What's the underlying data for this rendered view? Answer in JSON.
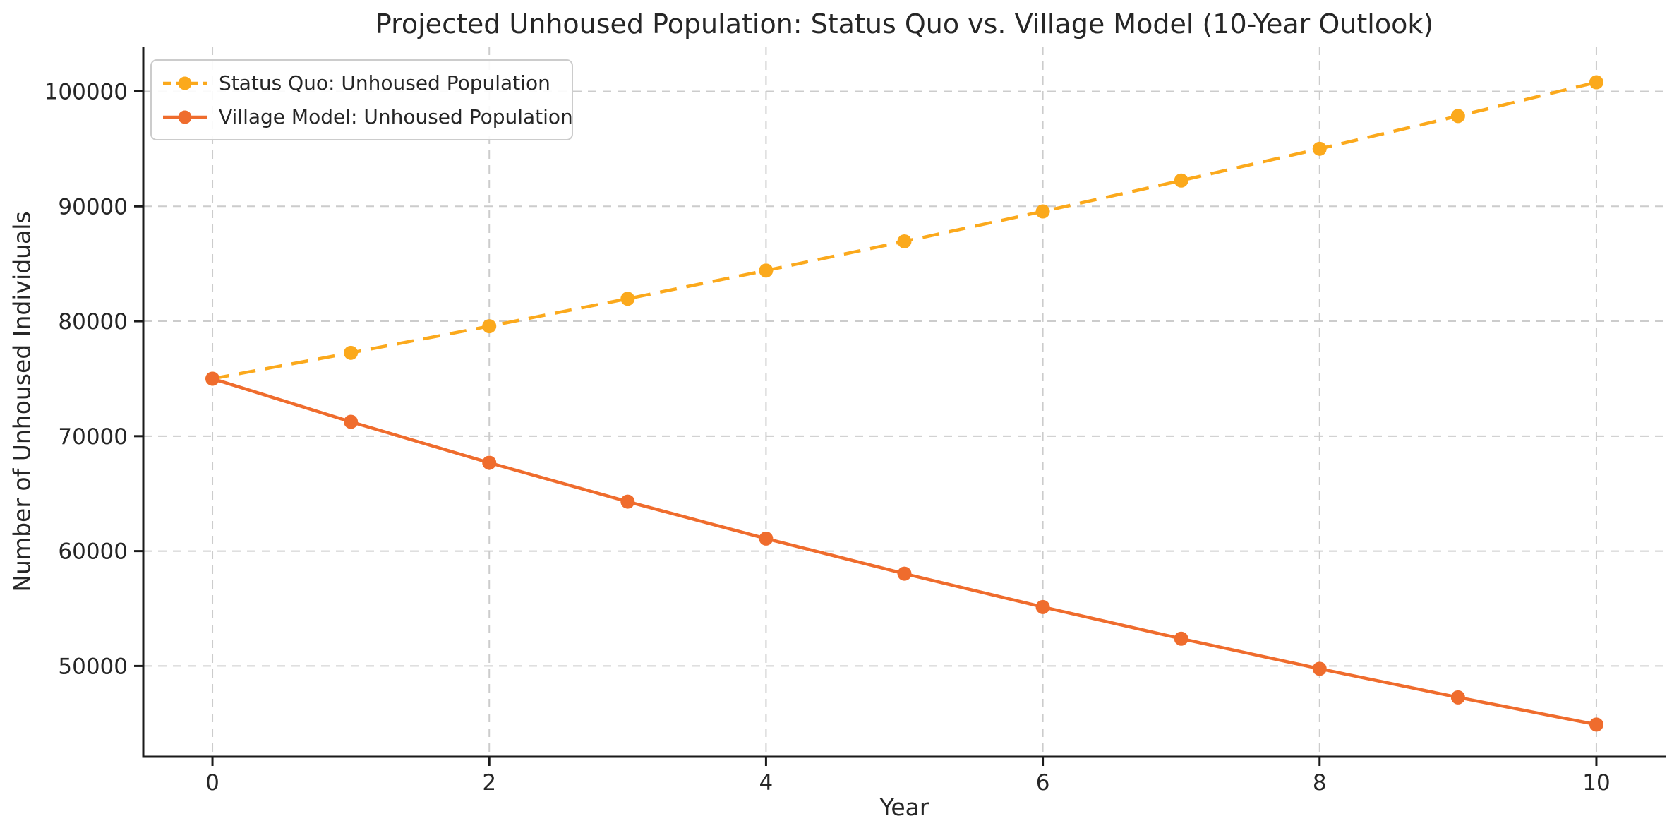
{
  "page": {
    "background_color": "#ffffff",
    "text_color": "#262626"
  },
  "chart_data": {
    "type": "line",
    "title": "Projected Unhoused Population: Status Quo vs. Village Model (10-Year Outlook)",
    "xlabel": "Year",
    "ylabel": "Number of Unhoused Individuals",
    "x": [
      0,
      1,
      2,
      3,
      4,
      5,
      6,
      7,
      8,
      9,
      10
    ],
    "xticks": [
      0,
      2,
      4,
      6,
      8,
      10
    ],
    "yticks": [
      50000,
      60000,
      70000,
      80000,
      90000,
      100000
    ],
    "ytick_labels": [
      "50000",
      "60000",
      "70000",
      "80000",
      "90000",
      "100000"
    ],
    "xtick_labels": [
      "0",
      "2",
      "4",
      "6",
      "8",
      "10"
    ],
    "xlim": [
      -0.5,
      10.5
    ],
    "ylim": [
      42100,
      103900
    ],
    "grid": {
      "show": true,
      "color": "#cccccc",
      "style": "dashed"
    },
    "axis": {
      "text_color": "#262626",
      "spine_color": "#1a1a1a"
    },
    "legend_position": "upper-left",
    "series": [
      {
        "name": "Status Quo: Unhoused Population",
        "color": "#FBA91C",
        "line_style": "dashed",
        "marker": "circle",
        "values": [
          75000,
          77250,
          79568,
          81955,
          84413,
          86946,
          89554,
          92241,
          95008,
          97858,
          100794
        ]
      },
      {
        "name": "Village Model: Unhoused Population",
        "color": "#EF6C2D",
        "line_style": "solid",
        "marker": "circle",
        "values": [
          75000,
          71250,
          67688,
          64303,
          61088,
          58034,
          55132,
          52375,
          49757,
          47269,
          44905
        ]
      }
    ]
  }
}
